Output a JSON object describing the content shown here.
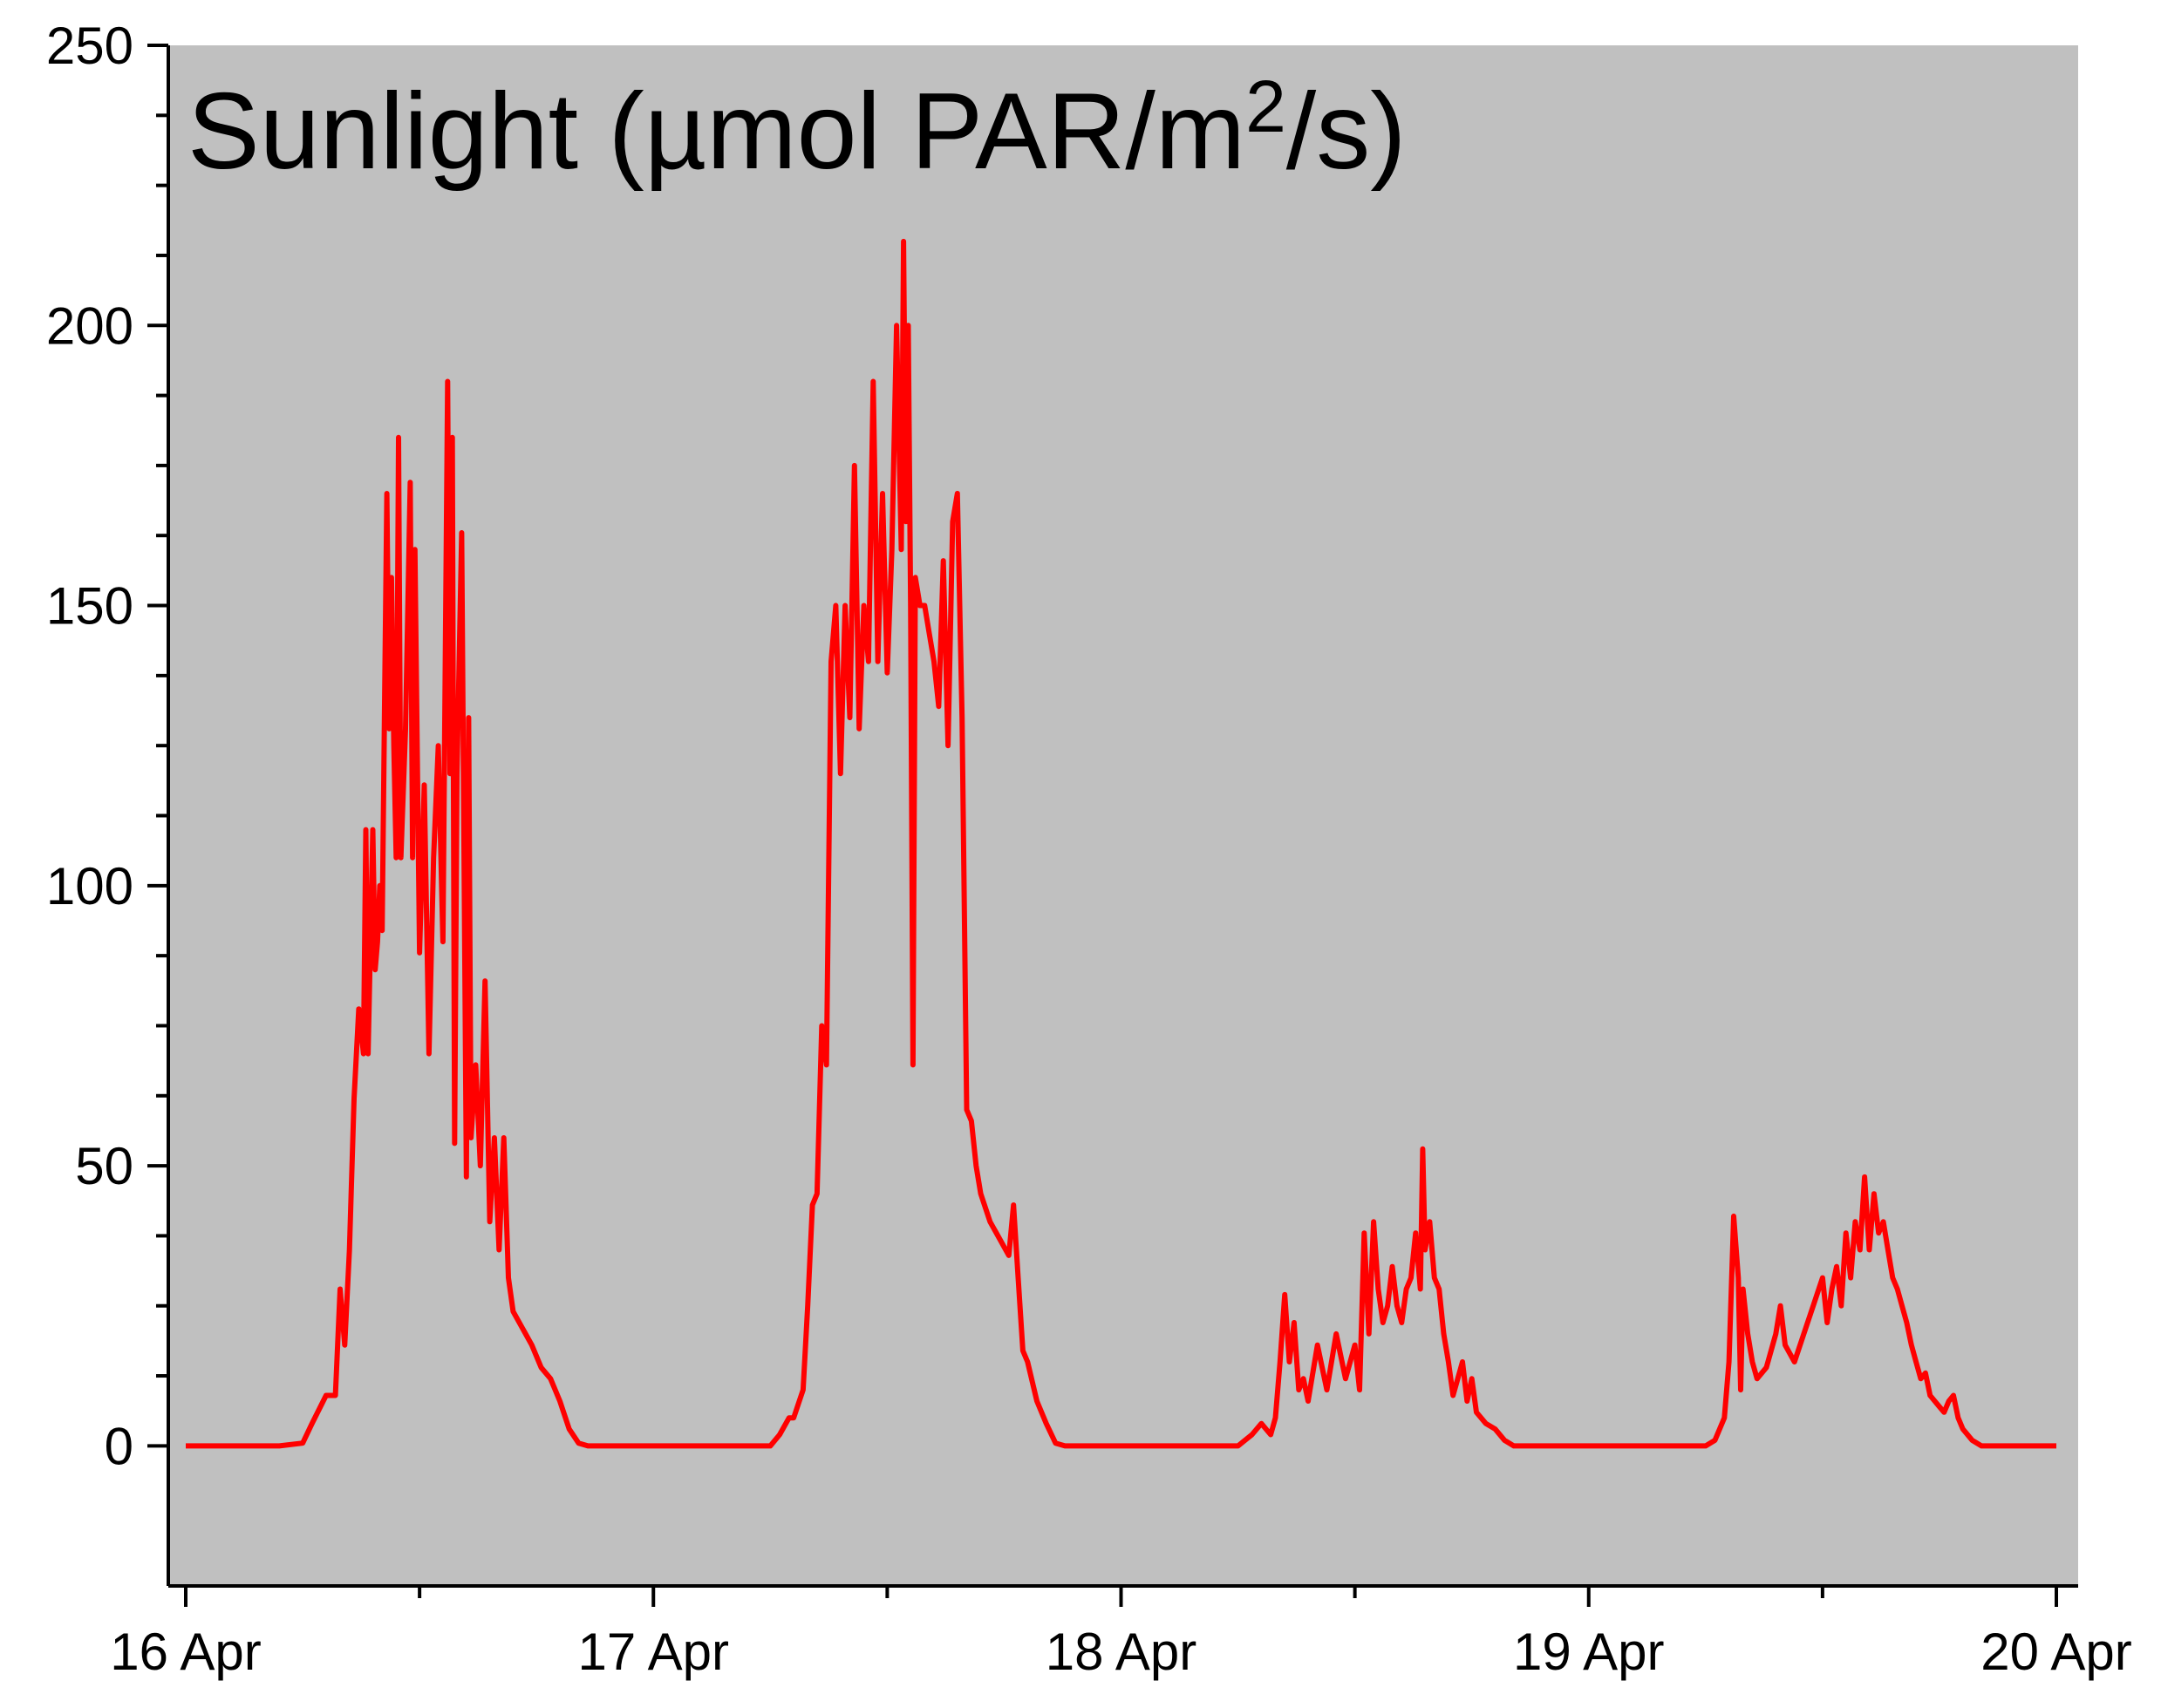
{
  "chart_data": {
    "type": "line",
    "title": "Sunlight (µmol PAR/m²/s)",
    "title_parts": {
      "main": "Sunlight (µmol PAR/m",
      "superscript": "2",
      "tail": "/s)"
    },
    "xlabel": "",
    "ylabel": "",
    "xlim": [
      0,
      4
    ],
    "ylim": [
      -25,
      250
    ],
    "x_unit": "days since 16 Apr",
    "xticks": [
      {
        "value": 0,
        "label": "16 Apr"
      },
      {
        "value": 1,
        "label": "17 Apr"
      },
      {
        "value": 2,
        "label": "18 Apr"
      },
      {
        "value": 3,
        "label": "19 Apr"
      },
      {
        "value": 4,
        "label": "20 Apr"
      }
    ],
    "yticks": [
      {
        "value": 0,
        "label": "0"
      },
      {
        "value": 50,
        "label": "50"
      },
      {
        "value": 100,
        "label": "100"
      },
      {
        "value": 150,
        "label": "150"
      },
      {
        "value": 200,
        "label": "200"
      },
      {
        "value": 250,
        "label": "250"
      }
    ],
    "grid": false,
    "legend": "none",
    "colors": {
      "plot_background": "#c0c0c0",
      "line": "#ff0000",
      "axis": "#000000"
    },
    "series": [
      {
        "points": [
          [
            0.0,
            0
          ],
          [
            0.2,
            0
          ],
          [
            0.25,
            0.5
          ],
          [
            0.27,
            4
          ],
          [
            0.3,
            9
          ],
          [
            0.32,
            9
          ],
          [
            0.33,
            28
          ],
          [
            0.34,
            18
          ],
          [
            0.35,
            35
          ],
          [
            0.36,
            62
          ],
          [
            0.37,
            78
          ],
          [
            0.38,
            70
          ],
          [
            0.385,
            110
          ],
          [
            0.39,
            70
          ],
          [
            0.4,
            110
          ],
          [
            0.405,
            85
          ],
          [
            0.41,
            90
          ],
          [
            0.415,
            100
          ],
          [
            0.42,
            92
          ],
          [
            0.43,
            170
          ],
          [
            0.435,
            128
          ],
          [
            0.44,
            155
          ],
          [
            0.445,
            125
          ],
          [
            0.45,
            105
          ],
          [
            0.455,
            180
          ],
          [
            0.46,
            105
          ],
          [
            0.47,
            128
          ],
          [
            0.48,
            172
          ],
          [
            0.485,
            105
          ],
          [
            0.49,
            160
          ],
          [
            0.5,
            88
          ],
          [
            0.51,
            118
          ],
          [
            0.52,
            70
          ],
          [
            0.53,
            105
          ],
          [
            0.54,
            125
          ],
          [
            0.55,
            90
          ],
          [
            0.56,
            190
          ],
          [
            0.565,
            120
          ],
          [
            0.57,
            180
          ],
          [
            0.575,
            54
          ],
          [
            0.58,
            120
          ],
          [
            0.59,
            163
          ],
          [
            0.6,
            48
          ],
          [
            0.605,
            130
          ],
          [
            0.61,
            55
          ],
          [
            0.62,
            68
          ],
          [
            0.63,
            50
          ],
          [
            0.64,
            83
          ],
          [
            0.65,
            40
          ],
          [
            0.66,
            55
          ],
          [
            0.67,
            35
          ],
          [
            0.68,
            55
          ],
          [
            0.69,
            30
          ],
          [
            0.7,
            24
          ],
          [
            0.72,
            21
          ],
          [
            0.74,
            18
          ],
          [
            0.76,
            14
          ],
          [
            0.78,
            12
          ],
          [
            0.8,
            8
          ],
          [
            0.82,
            3
          ],
          [
            0.84,
            0.5
          ],
          [
            0.86,
            0
          ],
          [
            1.0,
            0
          ],
          [
            1.25,
            0
          ],
          [
            1.27,
            2
          ],
          [
            1.29,
            5
          ],
          [
            1.3,
            5
          ],
          [
            1.32,
            10
          ],
          [
            1.33,
            25
          ],
          [
            1.34,
            43
          ],
          [
            1.35,
            45
          ],
          [
            1.36,
            75
          ],
          [
            1.37,
            68
          ],
          [
            1.38,
            140
          ],
          [
            1.39,
            150
          ],
          [
            1.4,
            120
          ],
          [
            1.41,
            150
          ],
          [
            1.42,
            130
          ],
          [
            1.43,
            175
          ],
          [
            1.44,
            128
          ],
          [
            1.45,
            150
          ],
          [
            1.46,
            140
          ],
          [
            1.47,
            190
          ],
          [
            1.48,
            140
          ],
          [
            1.49,
            170
          ],
          [
            1.5,
            138
          ],
          [
            1.51,
            160
          ],
          [
            1.52,
            200
          ],
          [
            1.53,
            160
          ],
          [
            1.535,
            215
          ],
          [
            1.54,
            165
          ],
          [
            1.545,
            200
          ],
          [
            1.55,
            150
          ],
          [
            1.555,
            68
          ],
          [
            1.56,
            155
          ],
          [
            1.57,
            150
          ],
          [
            1.58,
            150
          ],
          [
            1.59,
            145
          ],
          [
            1.6,
            140
          ],
          [
            1.61,
            132
          ],
          [
            1.62,
            158
          ],
          [
            1.63,
            125
          ],
          [
            1.64,
            165
          ],
          [
            1.65,
            170
          ],
          [
            1.66,
            130
          ],
          [
            1.67,
            60
          ],
          [
            1.68,
            58
          ],
          [
            1.69,
            50
          ],
          [
            1.7,
            45
          ],
          [
            1.72,
            40
          ],
          [
            1.74,
            37
          ],
          [
            1.76,
            34
          ],
          [
            1.77,
            43
          ],
          [
            1.78,
            30
          ],
          [
            1.79,
            17
          ],
          [
            1.8,
            15
          ],
          [
            1.82,
            8
          ],
          [
            1.84,
            4
          ],
          [
            1.86,
            0.5
          ],
          [
            1.88,
            0
          ],
          [
            2.0,
            0
          ],
          [
            2.25,
            0
          ],
          [
            2.28,
            2
          ],
          [
            2.3,
            4
          ],
          [
            2.32,
            2
          ],
          [
            2.33,
            5
          ],
          [
            2.34,
            15
          ],
          [
            2.35,
            27
          ],
          [
            2.36,
            15
          ],
          [
            2.37,
            22
          ],
          [
            2.38,
            10
          ],
          [
            2.39,
            12
          ],
          [
            2.4,
            8
          ],
          [
            2.42,
            18
          ],
          [
            2.44,
            10
          ],
          [
            2.46,
            20
          ],
          [
            2.48,
            12
          ],
          [
            2.5,
            18
          ],
          [
            2.51,
            10
          ],
          [
            2.52,
            38
          ],
          [
            2.53,
            20
          ],
          [
            2.54,
            40
          ],
          [
            2.55,
            28
          ],
          [
            2.56,
            22
          ],
          [
            2.57,
            25
          ],
          [
            2.58,
            32
          ],
          [
            2.59,
            25
          ],
          [
            2.6,
            22
          ],
          [
            2.61,
            28
          ],
          [
            2.62,
            30
          ],
          [
            2.63,
            38
          ],
          [
            2.64,
            28
          ],
          [
            2.645,
            53
          ],
          [
            2.65,
            35
          ],
          [
            2.66,
            40
          ],
          [
            2.67,
            30
          ],
          [
            2.68,
            28
          ],
          [
            2.69,
            20
          ],
          [
            2.7,
            15
          ],
          [
            2.71,
            9
          ],
          [
            2.72,
            12
          ],
          [
            2.73,
            15
          ],
          [
            2.74,
            8
          ],
          [
            2.75,
            12
          ],
          [
            2.76,
            6
          ],
          [
            2.78,
            4
          ],
          [
            2.8,
            3
          ],
          [
            2.82,
            1
          ],
          [
            2.84,
            0
          ],
          [
            3.0,
            0
          ],
          [
            3.25,
            0
          ],
          [
            3.27,
            1
          ],
          [
            3.29,
            5
          ],
          [
            3.3,
            15
          ],
          [
            3.31,
            41
          ],
          [
            3.32,
            30
          ],
          [
            3.325,
            10
          ],
          [
            3.33,
            28
          ],
          [
            3.34,
            20
          ],
          [
            3.35,
            15
          ],
          [
            3.36,
            12
          ],
          [
            3.38,
            14
          ],
          [
            3.4,
            20
          ],
          [
            3.41,
            25
          ],
          [
            3.42,
            18
          ],
          [
            3.44,
            15
          ],
          [
            3.46,
            20
          ],
          [
            3.48,
            25
          ],
          [
            3.5,
            30
          ],
          [
            3.51,
            22
          ],
          [
            3.52,
            28
          ],
          [
            3.53,
            32
          ],
          [
            3.54,
            25
          ],
          [
            3.55,
            38
          ],
          [
            3.56,
            30
          ],
          [
            3.57,
            40
          ],
          [
            3.58,
            35
          ],
          [
            3.59,
            48
          ],
          [
            3.6,
            35
          ],
          [
            3.61,
            45
          ],
          [
            3.62,
            38
          ],
          [
            3.63,
            40
          ],
          [
            3.64,
            35
          ],
          [
            3.65,
            30
          ],
          [
            3.66,
            28
          ],
          [
            3.67,
            25
          ],
          [
            3.68,
            22
          ],
          [
            3.69,
            18
          ],
          [
            3.7,
            15
          ],
          [
            3.71,
            12
          ],
          [
            3.72,
            13
          ],
          [
            3.73,
            9
          ],
          [
            3.75,
            7
          ],
          [
            3.76,
            6
          ],
          [
            3.77,
            8
          ],
          [
            3.78,
            9
          ],
          [
            3.79,
            5
          ],
          [
            3.8,
            3
          ],
          [
            3.82,
            1
          ],
          [
            3.84,
            0
          ],
          [
            4.0,
            0
          ]
        ]
      }
    ]
  }
}
